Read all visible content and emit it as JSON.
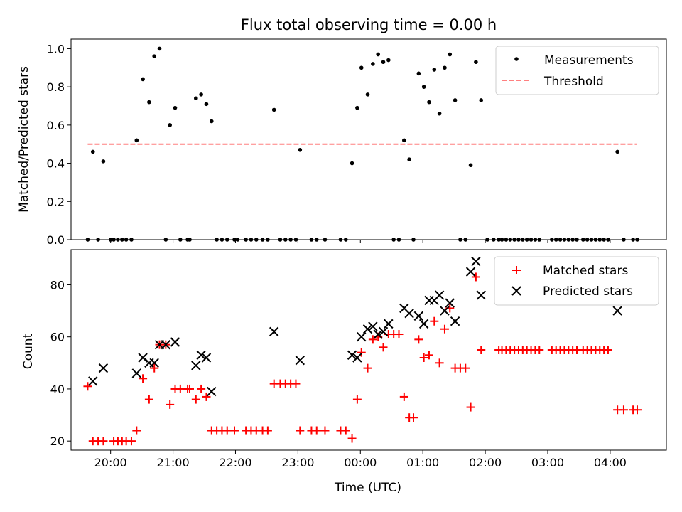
{
  "title": "Flux total observing time = 0.00 h",
  "colors": {
    "measurement": "#000000",
    "threshold": "#ff8080",
    "matched": "#ff0000",
    "predicted": "#000000"
  },
  "chart_data": [
    {
      "type": "scatter",
      "ylabel": "Matched/Predicted stars",
      "xlabel": "",
      "ylim": [
        0.0,
        1.05
      ],
      "yticks": [
        "0.0",
        "0.2",
        "0.4",
        "0.6",
        "0.8",
        "1.0"
      ],
      "ytick_values": [
        0.0,
        0.2,
        0.4,
        0.6,
        0.8,
        1.0
      ],
      "xlim": [
        "19:22",
        "04:54"
      ],
      "legend_position": "top-right",
      "series": [
        {
          "name": "Measurements",
          "marker": "dot",
          "points": [
            [
              "19:38",
              0.0
            ],
            [
              "19:43",
              0.46
            ],
            [
              "19:48",
              0.0
            ],
            [
              "19:53",
              0.41
            ],
            [
              "20:00",
              0.0
            ],
            [
              "20:03",
              0.0
            ],
            [
              "20:07",
              0.0
            ],
            [
              "20:11",
              0.0
            ],
            [
              "20:15",
              0.0
            ],
            [
              "20:20",
              0.0
            ],
            [
              "20:25",
              0.52
            ],
            [
              "20:31",
              0.84
            ],
            [
              "20:37",
              0.72
            ],
            [
              "20:42",
              0.96
            ],
            [
              "20:47",
              1.0
            ],
            [
              "20:53",
              0.0
            ],
            [
              "20:57",
              0.6
            ],
            [
              "21:02",
              0.69
            ],
            [
              "21:07",
              0.0
            ],
            [
              "21:14",
              0.0
            ],
            [
              "21:16",
              0.0
            ],
            [
              "21:22",
              0.74
            ],
            [
              "21:27",
              0.76
            ],
            [
              "21:32",
              0.71
            ],
            [
              "21:37",
              0.62
            ],
            [
              "21:42",
              0.0
            ],
            [
              "21:47",
              0.0
            ],
            [
              "21:52",
              0.0
            ],
            [
              "21:59",
              0.0
            ],
            [
              "22:02",
              0.0
            ],
            [
              "22:10",
              0.0
            ],
            [
              "22:15",
              0.0
            ],
            [
              "22:20",
              0.0
            ],
            [
              "22:26",
              0.0
            ],
            [
              "22:31",
              0.0
            ],
            [
              "22:37",
              0.68
            ],
            [
              "22:43",
              0.0
            ],
            [
              "22:48",
              0.0
            ],
            [
              "22:53",
              0.0
            ],
            [
              "22:58",
              0.0
            ],
            [
              "23:02",
              0.47
            ],
            [
              "23:13",
              0.0
            ],
            [
              "23:18",
              0.0
            ],
            [
              "23:26",
              0.0
            ],
            [
              "23:41",
              0.0
            ],
            [
              "23:46",
              0.0
            ],
            [
              "23:52",
              0.4
            ],
            [
              "23:57",
              0.69
            ],
            [
              "00:01",
              0.9
            ],
            [
              "00:07",
              0.76
            ],
            [
              "00:12",
              0.92
            ],
            [
              "00:17",
              0.97
            ],
            [
              "00:22",
              0.93
            ],
            [
              "00:27",
              0.94
            ],
            [
              "00:32",
              0.0
            ],
            [
              "00:37",
              0.0
            ],
            [
              "00:42",
              0.52
            ],
            [
              "00:47",
              0.42
            ],
            [
              "00:51",
              0.0
            ],
            [
              "00:56",
              0.87
            ],
            [
              "01:01",
              0.8
            ],
            [
              "01:06",
              0.72
            ],
            [
              "01:11",
              0.89
            ],
            [
              "01:16",
              0.66
            ],
            [
              "01:21",
              0.9
            ],
            [
              "01:26",
              0.97
            ],
            [
              "01:31",
              0.73
            ],
            [
              "01:36",
              0.0
            ],
            [
              "01:41",
              0.0
            ],
            [
              "01:46",
              0.39
            ],
            [
              "01:51",
              0.93
            ],
            [
              "01:56",
              0.73
            ],
            [
              "02:02",
              0.0
            ],
            [
              "02:08",
              0.0
            ],
            [
              "02:13",
              0.0
            ],
            [
              "02:16",
              0.0
            ],
            [
              "02:20",
              0.0
            ],
            [
              "02:24",
              0.0
            ],
            [
              "02:28",
              0.0
            ],
            [
              "02:32",
              0.0
            ],
            [
              "02:36",
              0.0
            ],
            [
              "02:40",
              0.0
            ],
            [
              "02:44",
              0.0
            ],
            [
              "02:48",
              0.0
            ],
            [
              "02:52",
              0.0
            ],
            [
              "03:04",
              0.0
            ],
            [
              "03:08",
              0.0
            ],
            [
              "03:12",
              0.0
            ],
            [
              "03:16",
              0.0
            ],
            [
              "03:20",
              0.0
            ],
            [
              "03:24",
              0.0
            ],
            [
              "03:28",
              0.0
            ],
            [
              "03:34",
              0.0
            ],
            [
              "03:38",
              0.0
            ],
            [
              "03:42",
              0.0
            ],
            [
              "03:46",
              0.0
            ],
            [
              "03:50",
              0.0
            ],
            [
              "03:54",
              0.0
            ],
            [
              "03:58",
              0.0
            ],
            [
              "04:07",
              0.46
            ],
            [
              "04:13",
              0.0
            ],
            [
              "04:22",
              0.0
            ],
            [
              "04:26",
              0.0
            ]
          ]
        },
        {
          "name": "Threshold",
          "marker": "dashed-line",
          "points": [
            [
              "19:38",
              0.5
            ],
            [
              "04:26",
              0.5
            ]
          ]
        }
      ]
    },
    {
      "type": "scatter",
      "ylabel": "Count",
      "xlabel": "Time (UTC)",
      "ylim": [
        16.5,
        93.5
      ],
      "yticks": [
        "20",
        "40",
        "60",
        "80"
      ],
      "ytick_values": [
        20,
        40,
        60,
        80
      ],
      "xlim": [
        "19:22",
        "04:54"
      ],
      "xticks": [
        "20:00",
        "21:00",
        "22:00",
        "23:00",
        "00:00",
        "01:00",
        "02:00",
        "03:00",
        "04:00"
      ],
      "legend_position": "top-right",
      "series": [
        {
          "name": "Matched stars",
          "marker": "plus",
          "points": [
            [
              "19:38",
              41
            ],
            [
              "19:43",
              20
            ],
            [
              "19:48",
              20
            ],
            [
              "19:53",
              20
            ],
            [
              "20:03",
              20
            ],
            [
              "20:07",
              20
            ],
            [
              "20:11",
              20
            ],
            [
              "20:15",
              20
            ],
            [
              "20:20",
              20
            ],
            [
              "20:25",
              24
            ],
            [
              "20:31",
              44
            ],
            [
              "20:37",
              36
            ],
            [
              "20:42",
              48
            ],
            [
              "20:47",
              57
            ],
            [
              "20:53",
              57
            ],
            [
              "20:57",
              34
            ],
            [
              "21:02",
              40
            ],
            [
              "21:07",
              40
            ],
            [
              "21:14",
              40
            ],
            [
              "21:16",
              40
            ],
            [
              "21:22",
              36
            ],
            [
              "21:27",
              40
            ],
            [
              "21:32",
              37
            ],
            [
              "21:37",
              24
            ],
            [
              "21:42",
              24
            ],
            [
              "21:47",
              24
            ],
            [
              "21:52",
              24
            ],
            [
              "21:59",
              24
            ],
            [
              "22:10",
              24
            ],
            [
              "22:15",
              24
            ],
            [
              "22:20",
              24
            ],
            [
              "22:26",
              24
            ],
            [
              "22:31",
              24
            ],
            [
              "22:37",
              42
            ],
            [
              "22:43",
              42
            ],
            [
              "22:48",
              42
            ],
            [
              "22:53",
              42
            ],
            [
              "22:58",
              42
            ],
            [
              "23:02",
              24
            ],
            [
              "23:13",
              24
            ],
            [
              "23:18",
              24
            ],
            [
              "23:26",
              24
            ],
            [
              "23:41",
              24
            ],
            [
              "23:46",
              24
            ],
            [
              "23:52",
              21
            ],
            [
              "23:57",
              36
            ],
            [
              "00:01",
              54
            ],
            [
              "00:07",
              48
            ],
            [
              "00:12",
              59
            ],
            [
              "00:17",
              60
            ],
            [
              "00:22",
              56
            ],
            [
              "00:27",
              61
            ],
            [
              "00:32",
              61
            ],
            [
              "00:37",
              61
            ],
            [
              "00:42",
              37
            ],
            [
              "00:47",
              29
            ],
            [
              "00:51",
              29
            ],
            [
              "00:56",
              59
            ],
            [
              "01:01",
              52
            ],
            [
              "01:06",
              53
            ],
            [
              "01:11",
              66
            ],
            [
              "01:16",
              50
            ],
            [
              "01:21",
              63
            ],
            [
              "01:26",
              71
            ],
            [
              "01:31",
              48
            ],
            [
              "01:36",
              48
            ],
            [
              "01:41",
              48
            ],
            [
              "01:46",
              33
            ],
            [
              "01:51",
              83
            ],
            [
              "01:56",
              55
            ],
            [
              "02:13",
              55
            ],
            [
              "02:16",
              55
            ],
            [
              "02:20",
              55
            ],
            [
              "02:24",
              55
            ],
            [
              "02:28",
              55
            ],
            [
              "02:32",
              55
            ],
            [
              "02:36",
              55
            ],
            [
              "02:40",
              55
            ],
            [
              "02:44",
              55
            ],
            [
              "02:48",
              55
            ],
            [
              "02:52",
              55
            ],
            [
              "03:04",
              55
            ],
            [
              "03:08",
              55
            ],
            [
              "03:12",
              55
            ],
            [
              "03:16",
              55
            ],
            [
              "03:20",
              55
            ],
            [
              "03:24",
              55
            ],
            [
              "03:28",
              55
            ],
            [
              "03:34",
              55
            ],
            [
              "03:38",
              55
            ],
            [
              "03:42",
              55
            ],
            [
              "03:46",
              55
            ],
            [
              "03:50",
              55
            ],
            [
              "03:54",
              55
            ],
            [
              "03:58",
              55
            ],
            [
              "04:07",
              32
            ],
            [
              "04:13",
              32
            ],
            [
              "04:22",
              32
            ],
            [
              "04:26",
              32
            ]
          ]
        },
        {
          "name": "Predicted stars",
          "marker": "x",
          "points": [
            [
              "19:43",
              43
            ],
            [
              "19:53",
              48
            ],
            [
              "20:25",
              46
            ],
            [
              "20:31",
              52
            ],
            [
              "20:37",
              50
            ],
            [
              "20:42",
              50
            ],
            [
              "20:47",
              57
            ],
            [
              "20:53",
              57
            ],
            [
              "21:02",
              58
            ],
            [
              "21:22",
              49
            ],
            [
              "21:27",
              53
            ],
            [
              "21:32",
              52
            ],
            [
              "21:37",
              39
            ],
            [
              "22:37",
              62
            ],
            [
              "23:02",
              51
            ],
            [
              "23:52",
              53
            ],
            [
              "23:57",
              52
            ],
            [
              "00:01",
              60
            ],
            [
              "00:07",
              63
            ],
            [
              "00:12",
              64
            ],
            [
              "00:17",
              61
            ],
            [
              "00:22",
              62
            ],
            [
              "00:27",
              65
            ],
            [
              "00:42",
              71
            ],
            [
              "00:47",
              69
            ],
            [
              "00:56",
              68
            ],
            [
              "01:01",
              65
            ],
            [
              "01:06",
              74
            ],
            [
              "01:11",
              74
            ],
            [
              "01:16",
              76
            ],
            [
              "01:21",
              70
            ],
            [
              "01:26",
              73
            ],
            [
              "01:31",
              66
            ],
            [
              "01:46",
              85
            ],
            [
              "01:51",
              89
            ],
            [
              "01:56",
              76
            ],
            [
              "04:07",
              70
            ]
          ]
        }
      ]
    }
  ]
}
